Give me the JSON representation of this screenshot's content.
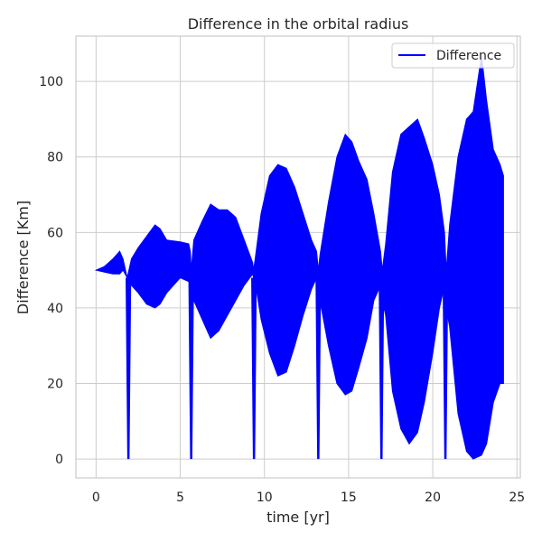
{
  "chart_data": {
    "type": "line",
    "title": "Difference in the orbital radius",
    "xlabel": "time [yr]",
    "ylabel": "Difference [Km]",
    "xlim": [
      -1.2,
      25.2
    ],
    "ylim": [
      -5,
      112
    ],
    "xticks": [
      0,
      5,
      10,
      15,
      20,
      25
    ],
    "yticks": [
      0,
      20,
      40,
      60,
      80,
      100
    ],
    "grid": true,
    "legend_position": "top-right",
    "series": [
      {
        "name": "Difference",
        "color": "#0000ff",
        "upper_envelope": {
          "x": [
            0,
            0.5,
            1.0,
            1.4,
            1.6,
            1.85,
            1.95,
            2.1,
            2.5,
            3.0,
            3.5,
            3.8,
            4.2,
            5.0,
            5.5,
            5.6,
            5.65,
            5.8,
            6.3,
            6.8,
            7.3,
            7.8,
            8.3,
            8.8,
            9.3,
            9.35,
            9.45,
            9.8,
            10.3,
            10.8,
            11.3,
            11.8,
            12.3,
            12.8,
            13.1,
            13.2,
            13.3,
            13.8,
            14.3,
            14.8,
            15.2,
            15.6,
            16.1,
            16.5,
            16.9,
            17.0,
            17.2,
            17.6,
            18.1,
            18.6,
            19.1,
            19.5,
            20.0,
            20.4,
            20.7,
            20.8,
            21.0,
            21.5,
            22.0,
            22.4,
            22.9,
            23.2,
            23.6,
            24.0,
            24.2
          ],
          "y": [
            50,
            51,
            53,
            55,
            53,
            48,
            50,
            53,
            56,
            59,
            62,
            61,
            58,
            57.5,
            57,
            55,
            50,
            58,
            63,
            67.5,
            66,
            66,
            64,
            58,
            52,
            50,
            53,
            65,
            75,
            78,
            77,
            72,
            65,
            58,
            55,
            50,
            54,
            68,
            80,
            86,
            84,
            79,
            74,
            65,
            55,
            50,
            57,
            76,
            86,
            88,
            90,
            85,
            78,
            70,
            60,
            50,
            62,
            80,
            90,
            92,
            107,
            95,
            82,
            78,
            75
          ]
        },
        "lower_envelope": {
          "x": [
            0,
            0.5,
            1.0,
            1.4,
            1.6,
            1.85,
            1.95,
            2.1,
            2.5,
            3.0,
            3.5,
            3.8,
            4.2,
            5.0,
            5.5,
            5.6,
            5.65,
            5.8,
            6.3,
            6.8,
            7.3,
            7.8,
            8.3,
            8.8,
            9.3,
            9.35,
            9.45,
            9.8,
            10.3,
            10.8,
            11.3,
            11.8,
            12.3,
            12.8,
            13.1,
            13.2,
            13.3,
            13.8,
            14.3,
            14.8,
            15.2,
            15.6,
            16.1,
            16.5,
            16.9,
            17.0,
            17.2,
            17.6,
            18.1,
            18.6,
            19.1,
            19.5,
            20.0,
            20.4,
            20.7,
            20.8,
            21.0,
            21.5,
            22.0,
            22.4,
            22.9,
            23.2,
            23.6,
            24.0,
            24.2
          ],
          "y": [
            50,
            49.5,
            49,
            49,
            50,
            48,
            47,
            46,
            44,
            41,
            40,
            41,
            44,
            48,
            47,
            46,
            45,
            42,
            37,
            32,
            34,
            38,
            42,
            46,
            49,
            48,
            47,
            37,
            28,
            22,
            23,
            30,
            38,
            45,
            48,
            44,
            42,
            30,
            20,
            17,
            18,
            24,
            32,
            42,
            46,
            42,
            38,
            18,
            8,
            4,
            7,
            15,
            28,
            40,
            46,
            40,
            35,
            12,
            2,
            0,
            1,
            4,
            15,
            20,
            20
          ]
        },
        "dips": [
          {
            "x": 1.92,
            "y": 0
          },
          {
            "x": 5.65,
            "y": 0
          },
          {
            "x": 9.38,
            "y": 0
          },
          {
            "x": 13.2,
            "y": 0
          },
          {
            "x": 16.95,
            "y": 0
          },
          {
            "x": 20.75,
            "y": 0
          }
        ]
      }
    ]
  }
}
